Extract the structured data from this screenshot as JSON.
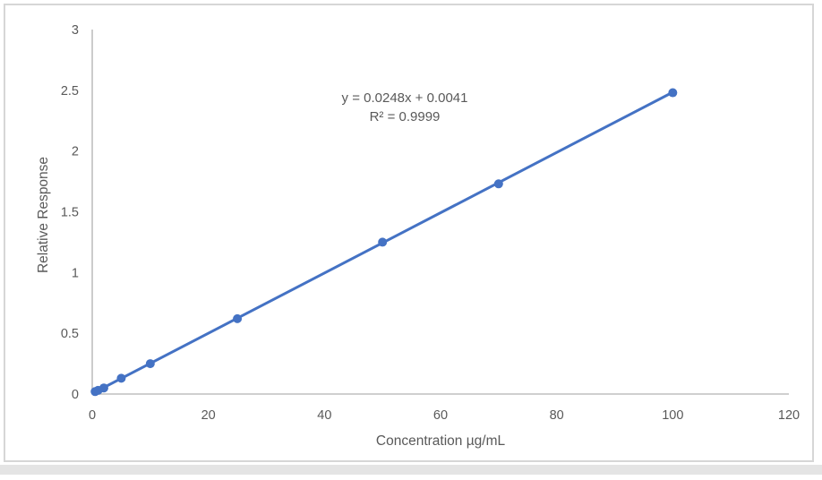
{
  "chart_data": {
    "type": "scatter",
    "title": "",
    "xlabel": "Concentration µg/mL",
    "ylabel": "Relative Response",
    "x": [
      0.5,
      1,
      2,
      5,
      10,
      25,
      50,
      70,
      100
    ],
    "y": [
      0.02,
      0.03,
      0.05,
      0.13,
      0.25,
      0.62,
      1.25,
      1.73,
      2.48
    ],
    "xlim": [
      0,
      120
    ],
    "ylim": [
      0,
      3
    ],
    "xticks": [
      0,
      20,
      40,
      60,
      80,
      100,
      120
    ],
    "yticks": [
      0,
      0.5,
      1,
      1.5,
      2,
      2.5,
      3
    ],
    "grid": false,
    "legend": "none",
    "trendline": {
      "slope": 0.0248,
      "intercept": 0.0041,
      "equation_label": "y = 0.0248x + 0.0041",
      "r2_label": "R² = 0.9999",
      "x_start": 0.5,
      "x_end": 100
    },
    "colors": {
      "series": "#4472C4",
      "axis_line": "#BFBFBF",
      "text": "#595959",
      "frame_border": "#D6D6D6",
      "page_strip": "#E4E4E4"
    }
  }
}
